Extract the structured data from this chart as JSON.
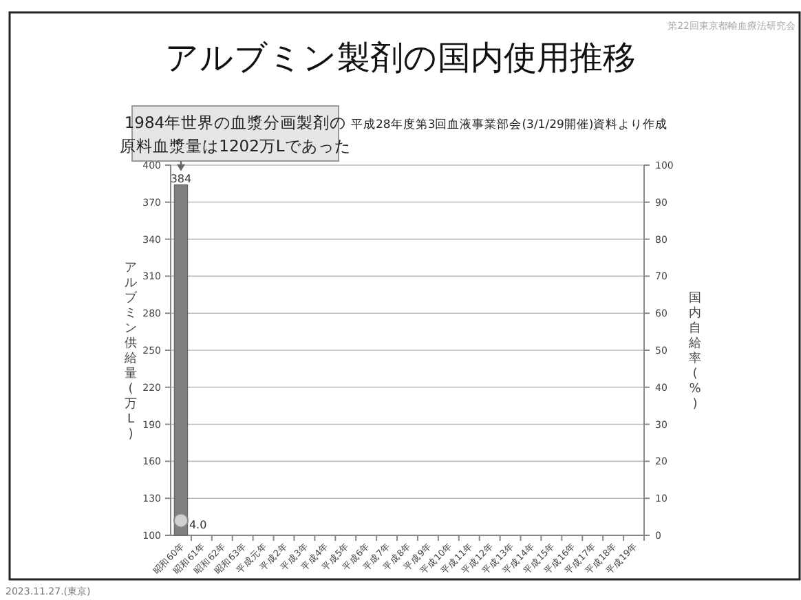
{
  "chart_data": {
    "type": "bar",
    "title": "アルブミン製剤の国内使用推移",
    "categories": [
      "昭和60年",
      "昭和61年",
      "昭和62年",
      "昭和63年",
      "平成元年",
      "平成2年",
      "平成3年",
      "平成4年",
      "平成5年",
      "平成6年",
      "平成7年",
      "平成8年",
      "平成9年",
      "平成10年",
      "平成11年",
      "平成12年",
      "平成13年",
      "平成14年",
      "平成15年",
      "平成16年",
      "平成17年",
      "平成18年",
      "平成19年"
    ],
    "series": [
      {
        "color": "#7f7f7f",
        "values": [
          384,
          null,
          null,
          null,
          null,
          null,
          null,
          null,
          null,
          null,
          null,
          null,
          null,
          null,
          null,
          null,
          null,
          null,
          null,
          null,
          null,
          null,
          null
        ],
        "value_labels": [
          "384",
          null,
          null,
          null,
          null,
          null,
          null,
          null,
          null,
          null,
          null,
          null,
          null,
          null,
          null,
          null,
          null,
          null,
          null,
          null,
          null,
          null,
          null
        ]
      },
      {
        "type": "scatter",
        "axis": "y2",
        "marker": "circle",
        "color": "#d0d0d0",
        "values": [
          4.0,
          null,
          null,
          null,
          null,
          null,
          null,
          null,
          null,
          null,
          null,
          null,
          null,
          null,
          null,
          null,
          null,
          null,
          null,
          null,
          null,
          null,
          null
        ],
        "value_labels": [
          "4.0",
          null,
          null,
          null,
          null,
          null,
          null,
          null,
          null,
          null,
          null,
          null,
          null,
          null,
          null,
          null,
          null,
          null,
          null,
          null,
          null,
          null,
          null
        ]
      }
    ],
    "ylabel": "アルブミン供給量(万L)",
    "y2label": "国内自給率(%)",
    "ylim": [
      100,
      400
    ],
    "yticks": [
      100,
      130,
      160,
      190,
      220,
      250,
      280,
      310,
      340,
      370,
      400
    ],
    "y2lim": [
      0,
      100
    ],
    "y2ticks": [
      0,
      10,
      20,
      30,
      40,
      50,
      60,
      70,
      80,
      90,
      100
    ],
    "grid": "y",
    "annotations": [
      {
        "text": "1984年世界の血漿分画製剤の原料血漿量は1202万Lであった",
        "x": "昭和60年",
        "y": 384
      },
      "平成28年度第3回血液事業部会(3/1/29開催)資料より作成",
      "第22回東京都輸血療法研究会",
      "2023.11.27.(東京)"
    ]
  }
}
